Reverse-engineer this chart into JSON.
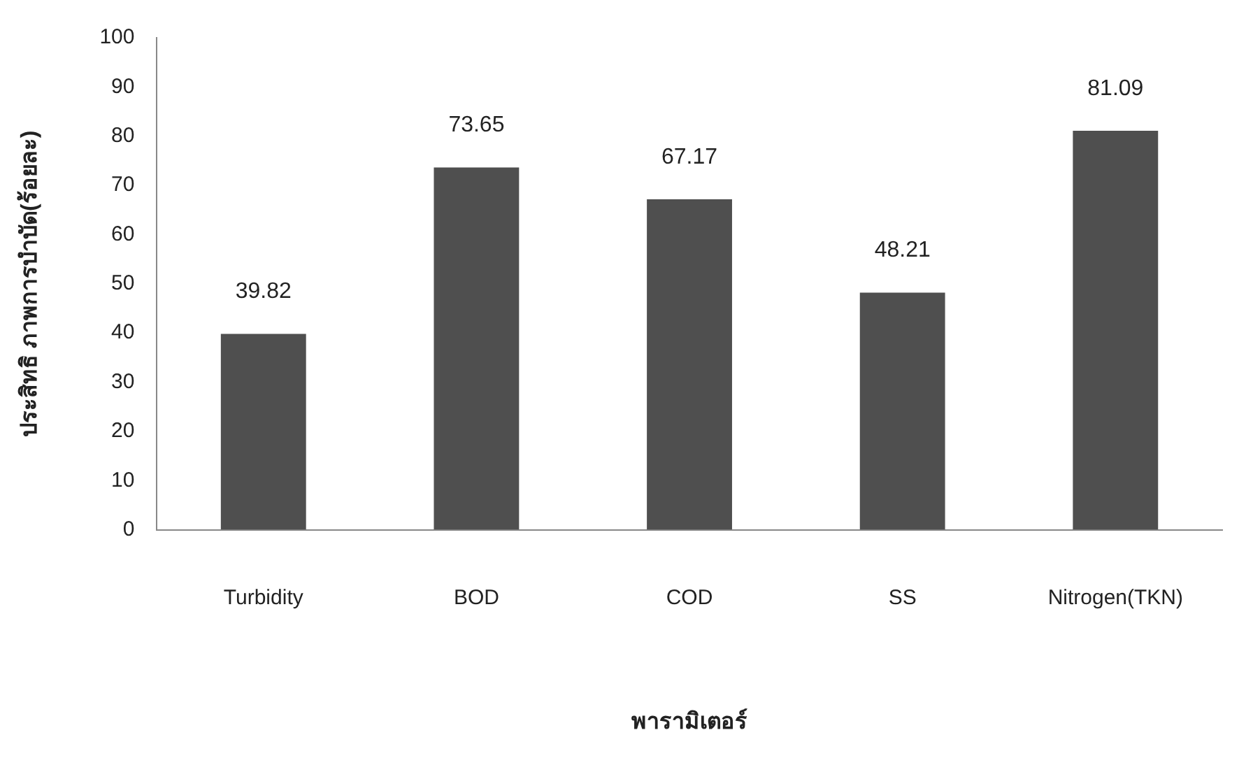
{
  "chart_data": {
    "type": "bar",
    "xlabel": "พารามิเตอร์",
    "ylabel": "ประสิทธิ ภาพการบำบัด(ร้อยละ)",
    "categories": [
      "Turbidity",
      "BOD",
      "COD",
      "SS",
      "Nitrogen(TKN)"
    ],
    "values": [
      39.82,
      73.65,
      67.17,
      48.21,
      81.09
    ],
    "color": "#4f4f4f",
    "ylim": [
      0,
      100
    ],
    "yticks": [
      0,
      10,
      20,
      30,
      40,
      50,
      60,
      70,
      80,
      90,
      100
    ],
    "grid": false,
    "data_labels": true,
    "legend": false
  }
}
